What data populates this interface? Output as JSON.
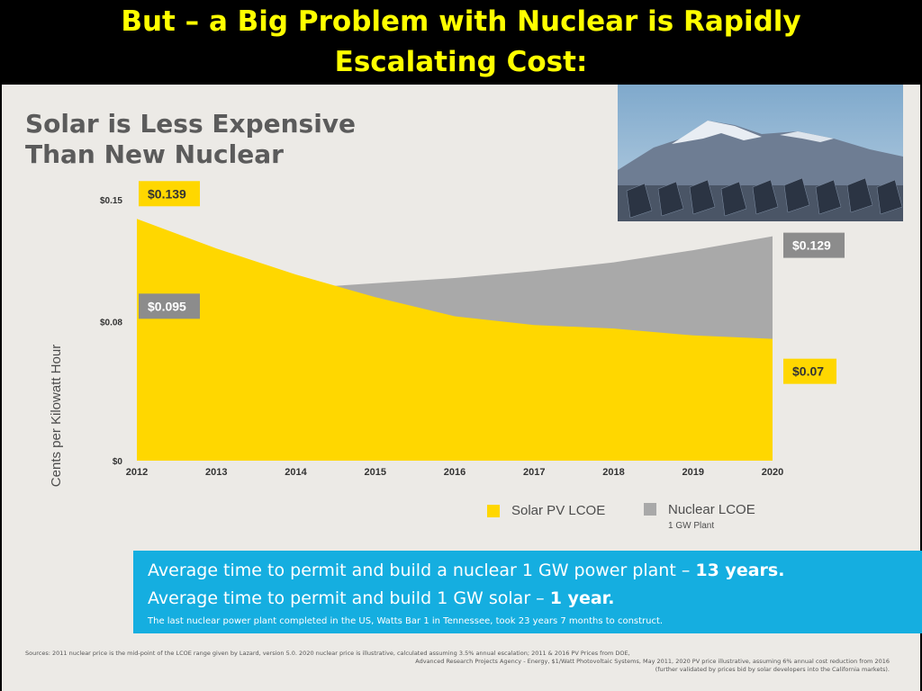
{
  "slide": {
    "title_line1": "But – a Big Problem with Nuclear is Rapidly",
    "title_line2": "Escalating Cost:"
  },
  "chart_data": {
    "type": "area",
    "title_line1": "Solar is Less Expensive",
    "title_line2": "Than New Nuclear",
    "ylabel": "Cents per Kilowatt Hour",
    "xlabel": "",
    "x": [
      2012,
      2013,
      2014,
      2015,
      2016,
      2017,
      2018,
      2019,
      2020
    ],
    "x_tick_labels": [
      "2012",
      "2013",
      "2014",
      "2015",
      "2016",
      "2017",
      "2018",
      "2019",
      "2020"
    ],
    "ylim": [
      0,
      0.15
    ],
    "y_ticks": [
      0,
      0.08,
      0.15
    ],
    "y_tick_labels": [
      "$0",
      "$0.08",
      "$0.15"
    ],
    "grid": false,
    "legend_position": "bottom-right",
    "series": [
      {
        "name": "Solar PV LCOE",
        "color": "#ffd700",
        "values": [
          0.139,
          0.122,
          0.107,
          0.094,
          0.083,
          0.078,
          0.076,
          0.072,
          0.07
        ]
      },
      {
        "name": "Nuclear LCOE",
        "subtitle": "1 GW Plant",
        "color": "#a9a9a9",
        "values": [
          0.095,
          0.097,
          0.099,
          0.102,
          0.105,
          0.109,
          0.114,
          0.121,
          0.129
        ]
      }
    ],
    "annotations": [
      {
        "text": "$0.139",
        "series": 0,
        "x": 2012,
        "value": 0.139,
        "box_color": "#ffd700",
        "text_color": "#333333"
      },
      {
        "text": "$0.095",
        "series": 1,
        "x": 2012,
        "value": 0.095,
        "box_color": "#8c8c8c",
        "text_color": "#ffffff"
      },
      {
        "text": "$0.129",
        "series": 1,
        "x": 2020,
        "value": 0.129,
        "box_color": "#8c8c8c",
        "text_color": "#ffffff"
      },
      {
        "text": "$0.07",
        "series": 0,
        "x": 2020,
        "value": 0.07,
        "box_color": "#ffd700",
        "text_color": "#333333"
      }
    ]
  },
  "legend": {
    "solar": "Solar PV LCOE",
    "nuclear": "Nuclear LCOE",
    "nuclear_sub": "1 GW Plant"
  },
  "info": {
    "line1_prefix": "Average time to permit and build a nuclear 1 GW power plant – ",
    "line1_bold": "13 years.",
    "line2_prefix": "Average time to permit and build 1 GW solar – ",
    "line2_bold": "1 year.",
    "line3": "The last nuclear power plant completed in the US, Watts Bar 1 in Tennessee, took 23 years 7 months to construct."
  },
  "sources": {
    "line1": "Sources: 2011 nuclear price is the mid-point of the LCOE range given by Lazard, version 5.0. 2020 nuclear price is illustrative, calculated assuming 3.5% annual escalation; 2011 & 2016 PV Prices from DOE,",
    "line2": "Advanced Research Projects Agency - Energy, $1/Watt Photovoltaic Systems, May 2011, 2020 PV price illustrative, assuming 6% annual cost reduction from 2016",
    "line3": "(further validated by prices bid by solar developers into the California markets)."
  },
  "colors": {
    "slide_title": "#ffff00",
    "solar": "#ffd700",
    "nuclear": "#a9a9a9",
    "info_box": "#15aee0"
  },
  "photo": {
    "description_icon": "mountain-solar-panels-photo"
  }
}
